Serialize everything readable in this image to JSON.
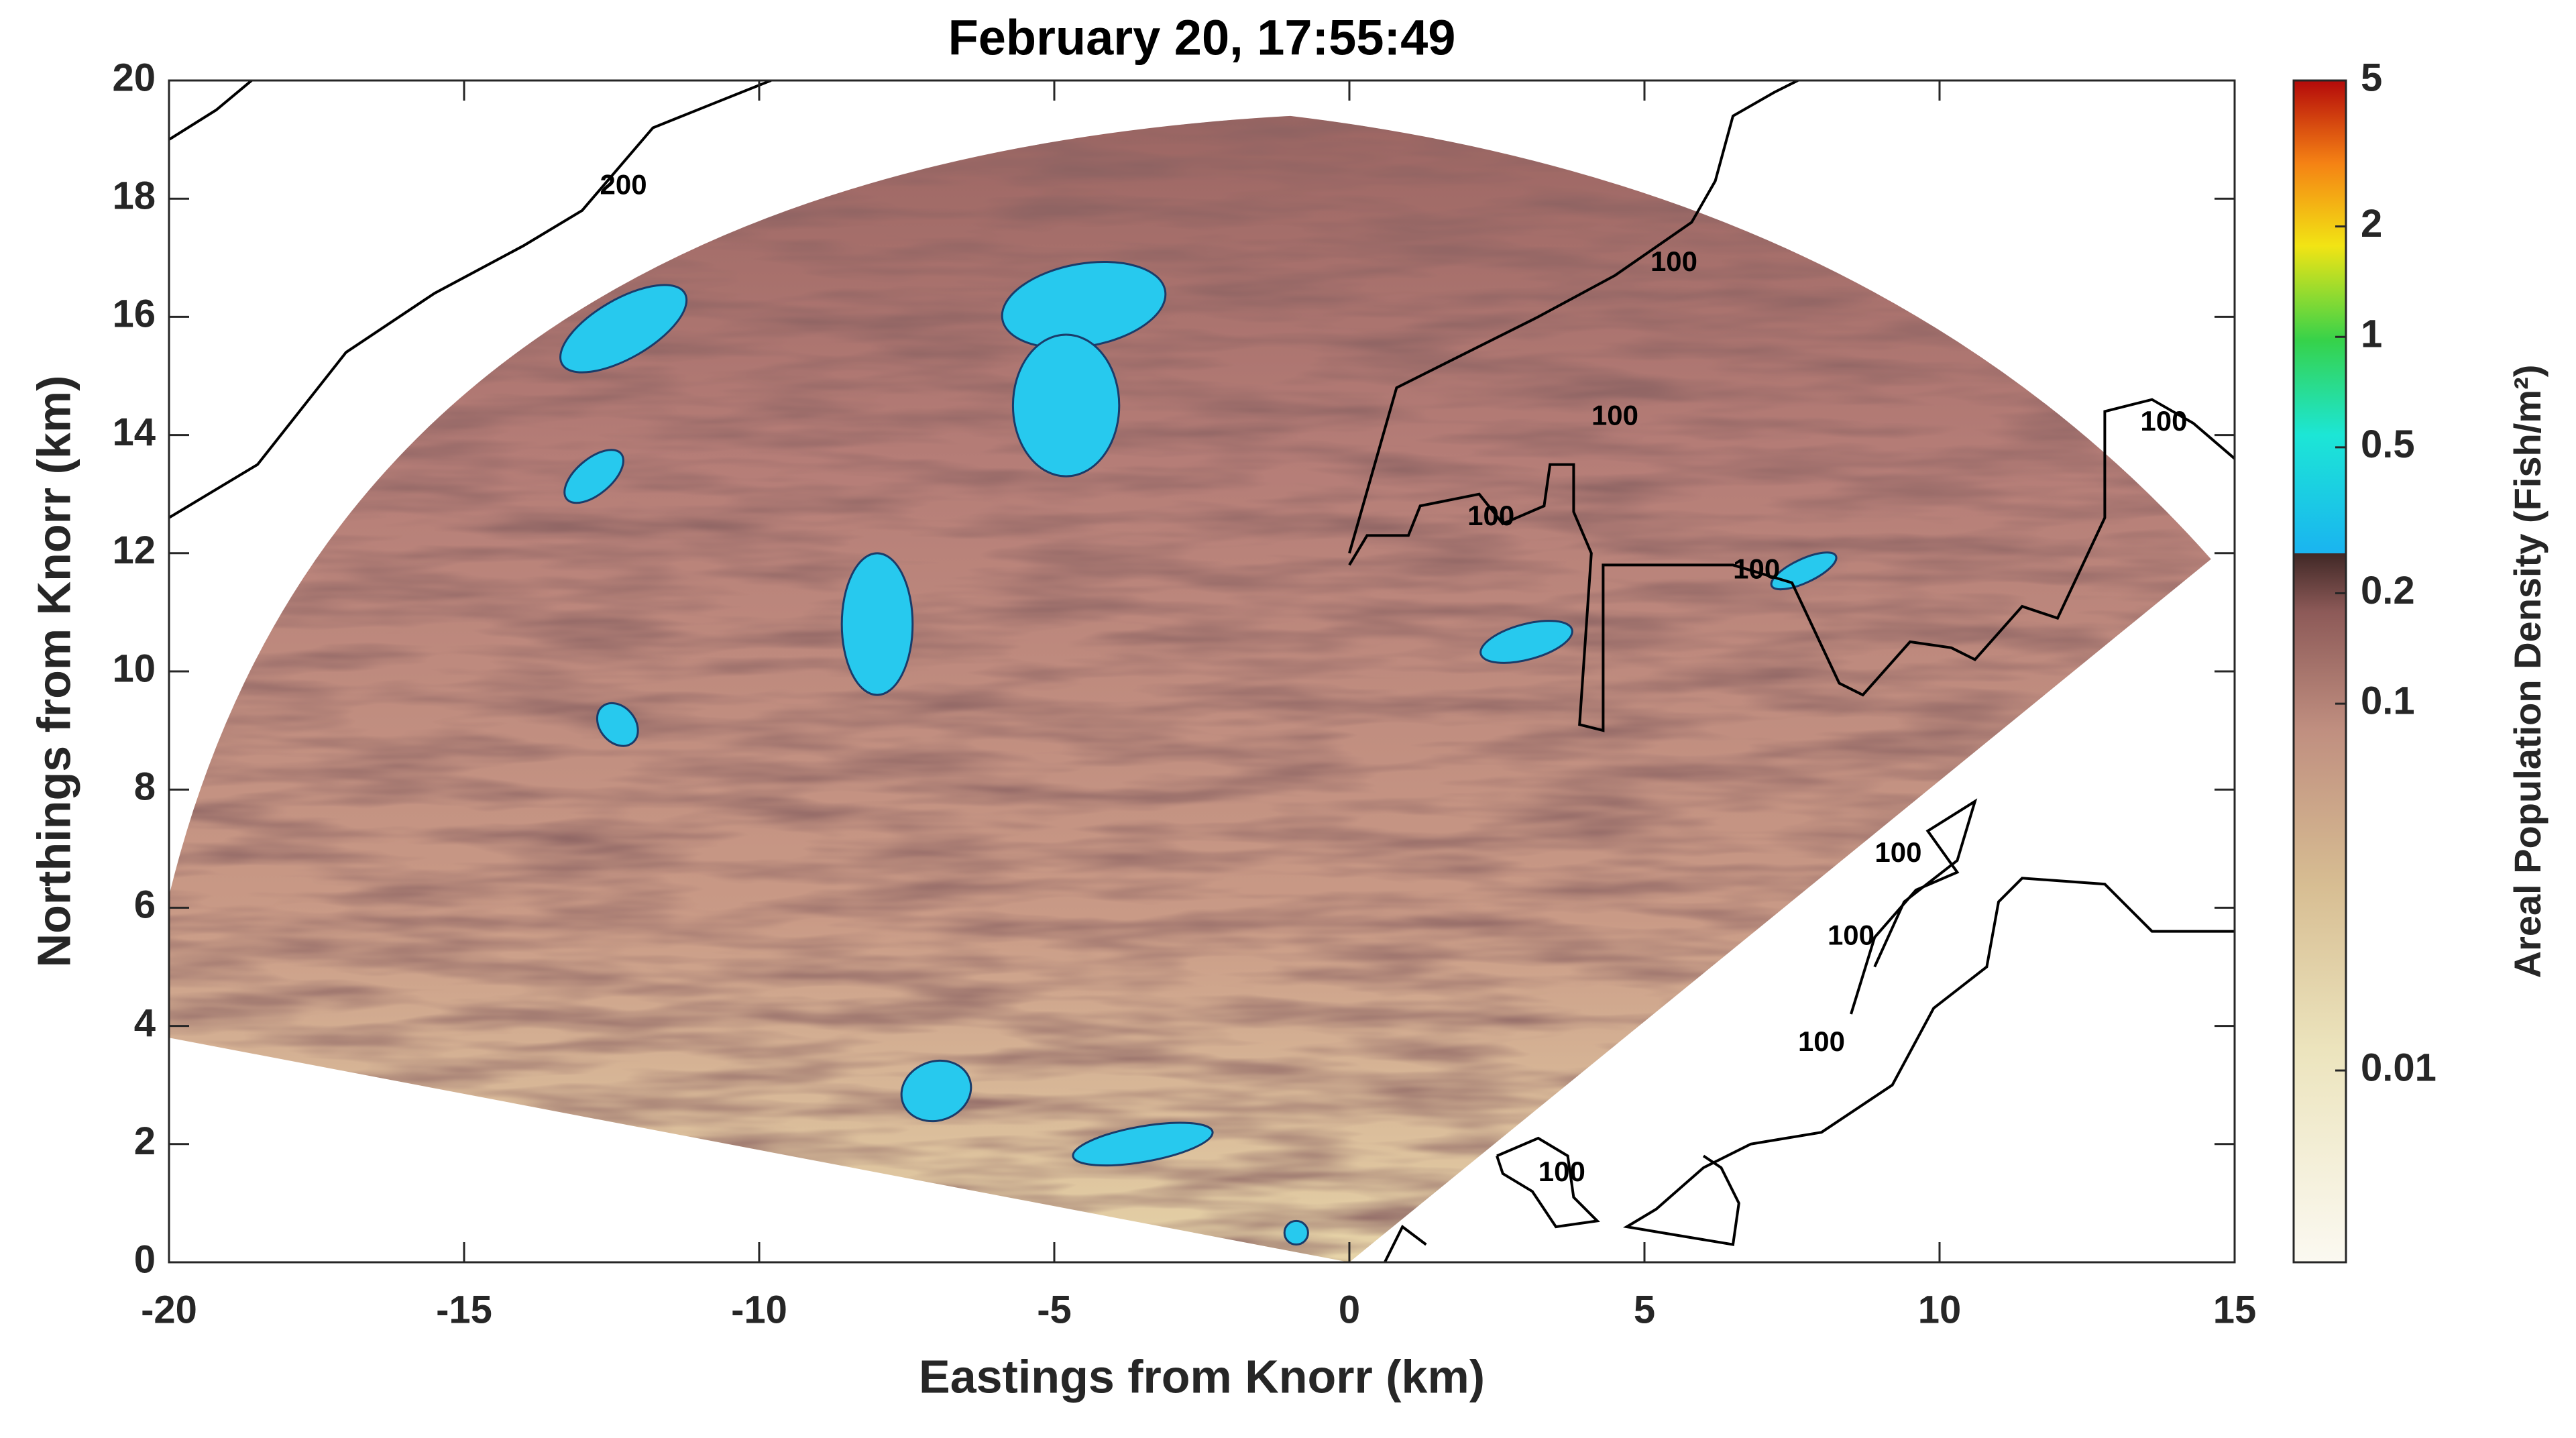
{
  "chart_data": {
    "type": "heatmap",
    "title": "February 20, 17:55:49",
    "x_label": "Eastings from Knorr (km)",
    "y_label": "Northings from Knorr (km)",
    "xlim": [
      -20,
      15
    ],
    "ylim": [
      0,
      20
    ],
    "xticks": [
      -20,
      -15,
      -10,
      -5,
      0,
      5,
      10,
      15
    ],
    "yticks": [
      0,
      2,
      4,
      6,
      8,
      10,
      12,
      14,
      16,
      18,
      20
    ],
    "colorbar": {
      "label": "Areal Population Density (Fish/m²)",
      "scale": "log",
      "lim": [
        0.003,
        5
      ],
      "ticks": [
        0.01,
        0.1,
        0.2,
        0.5,
        1,
        2,
        5
      ]
    },
    "annotations": [
      {
        "text": "200",
        "x": -12.3,
        "y": 18.2
      },
      {
        "text": "100",
        "x": 5.5,
        "y": 16.9
      },
      {
        "text": "100",
        "x": 4.5,
        "y": 14.3
      },
      {
        "text": "100",
        "x": 2.4,
        "y": 12.6
      },
      {
        "text": "100",
        "x": 6.9,
        "y": 11.7
      },
      {
        "text": "100",
        "x": 13.8,
        "y": 14.2
      },
      {
        "text": "100",
        "x": 9.3,
        "y": 6.9
      },
      {
        "text": "100",
        "x": 8.5,
        "y": 5.5
      },
      {
        "text": "100",
        "x": 8.0,
        "y": 3.7
      },
      {
        "text": "100",
        "x": 3.6,
        "y": 1.5
      }
    ]
  }
}
